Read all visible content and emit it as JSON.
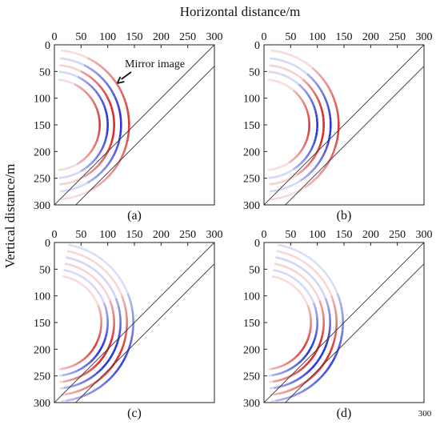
{
  "figure": {
    "x_axis_title": "Horizontal distance/m",
    "y_axis_title": "Vertical distance/m",
    "stray_label": "300"
  },
  "colors": {
    "positive": "#d62222",
    "negative": "#1f2bd6",
    "frame": "#222222",
    "reflector": "#333333"
  },
  "chart_data": {
    "type": "image-panels",
    "x_ticks": [
      0,
      50,
      100,
      150,
      200,
      250,
      300
    ],
    "y_ticks": [
      0,
      50,
      100,
      150,
      200,
      250,
      300
    ],
    "xlim": [
      0,
      300
    ],
    "ylim": [
      0,
      300
    ],
    "y_inverted": true,
    "reflector_lines": [
      {
        "from": [
          0,
          300
        ],
        "to": [
          300,
          0
        ]
      },
      {
        "from": [
          40,
          300
        ],
        "to": [
          300,
          40
        ]
      }
    ],
    "panels": [
      {
        "id": "a",
        "label": "(a)",
        "source": [
          0,
          150
        ],
        "radii": [
          85,
          100,
          112,
          125,
          140
        ],
        "arc_deg": [
          -85,
          85
        ],
        "focus_deg": [
          -65,
          60
        ],
        "annotation": {
          "text": "Mirror image",
          "arrow_to": [
            118,
            72
          ]
        }
      },
      {
        "id": "b",
        "label": "(b)",
        "source": [
          0,
          150
        ],
        "radii": [
          85,
          100,
          112,
          125,
          140
        ],
        "arc_deg": [
          -85,
          85
        ],
        "focus_deg": [
          -50,
          55
        ]
      },
      {
        "id": "c",
        "label": "(c)",
        "source": [
          0,
          150
        ],
        "radii": [
          88,
          100,
          112,
          124,
          136,
          148
        ],
        "arc_deg": [
          -80,
          85
        ],
        "focus_deg": [
          -20,
          80
        ]
      },
      {
        "id": "d",
        "label": "(d)",
        "source": [
          0,
          150
        ],
        "radii": [
          88,
          100,
          112,
          124,
          136,
          148
        ],
        "arc_deg": [
          -80,
          85
        ],
        "focus_deg": [
          -20,
          82
        ]
      }
    ]
  }
}
